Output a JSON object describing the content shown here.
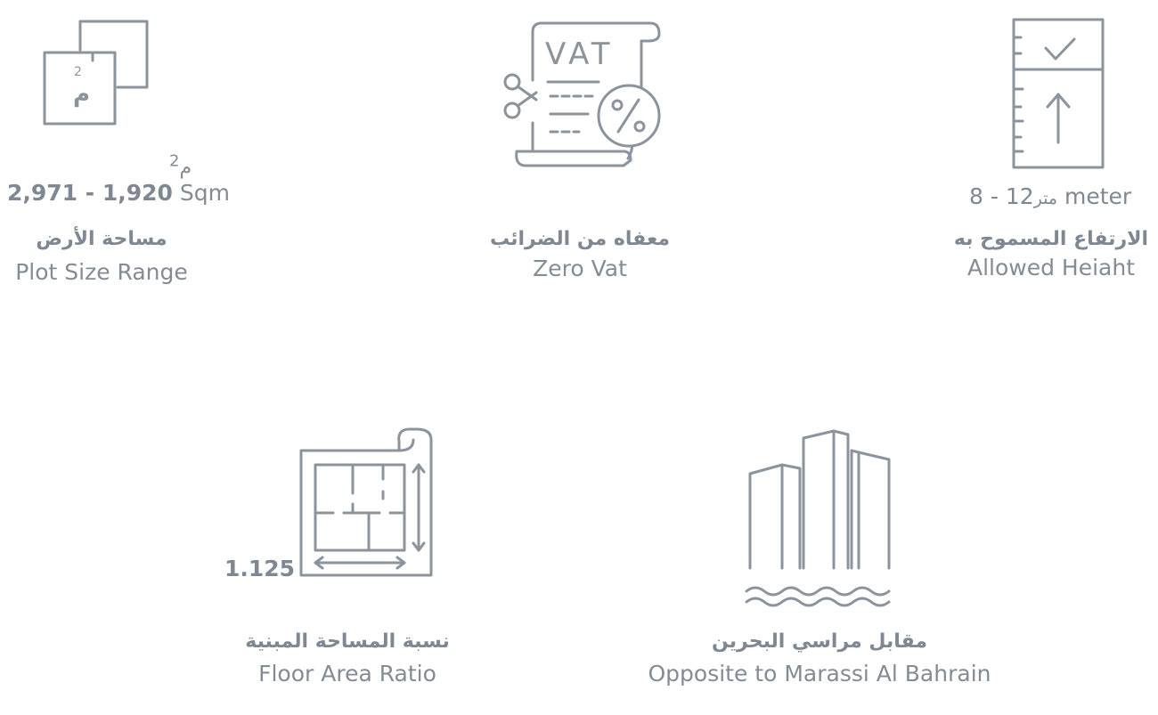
{
  "features": {
    "plot_size": {
      "unit_ar": "م",
      "unit_sup": "2",
      "range": "2,971 - 1,920",
      "unit_en": "Sqm",
      "label_ar": "مساحة الأرض",
      "label_en": "Plot Size Range",
      "icon": "area-squares-icon"
    },
    "vat": {
      "icon_text": "VAT",
      "label_ar": "معفاه من الضرائب",
      "label_en": "Zero Vat",
      "icon": "vat-receipt-icon"
    },
    "height": {
      "range": "12 - 8 meter",
      "unit_ar": "متر",
      "label_ar": "الارتفاع المسموح به",
      "label_en": "Allowed Heiaht",
      "icon": "height-ruler-icon"
    },
    "far": {
      "value": "1.125",
      "label_ar": "نسبة المساحة المبنية",
      "label_en": "Floor Area Ratio",
      "icon": "floor-plan-icon"
    },
    "location": {
      "label_ar": "مقابل مراسي البحرين",
      "label_en": "Opposite to Marassi Al Bahrain",
      "icon": "buildings-waterfront-icon"
    }
  },
  "colors": {
    "icon_stroke": "#8b939d",
    "text": "#7e8792"
  }
}
